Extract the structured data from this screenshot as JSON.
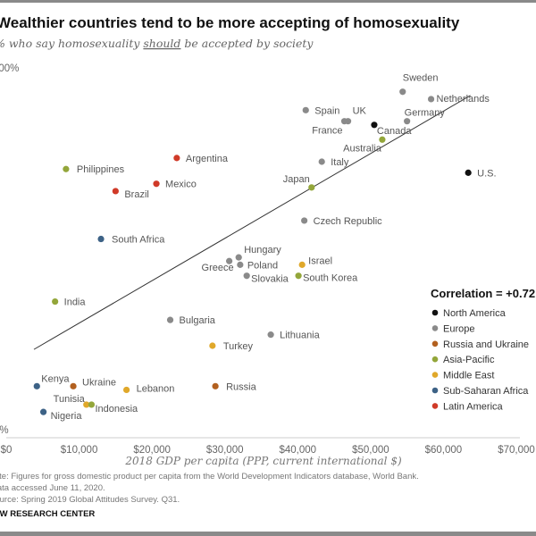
{
  "chart_data": {
    "type": "scatter",
    "title": "Wealthier countries tend to be more accepting of homosexuality",
    "subtitle_parts": [
      "% who say homosexuality ",
      "should",
      " be accepted by society"
    ],
    "xlabel": "2018 GDP per capita (PPP, current international $)",
    "ylabel": "",
    "xlim": [
      0,
      70000
    ],
    "ylim": [
      0,
      100
    ],
    "x_ticks": [
      "$0",
      "$10,000",
      "$20,000",
      "$30,000",
      "$40,000",
      "$50,000",
      "$60,000",
      "$70,000"
    ],
    "y_ticks": [
      "0%",
      "100%"
    ],
    "grid": false,
    "correlation_label": "Correlation = +0.72",
    "legend_position": "right",
    "regions": [
      {
        "name": "North America",
        "color": "#111111"
      },
      {
        "name": "Europe",
        "color": "#8a8a8a"
      },
      {
        "name": "Russia and Ukraine",
        "color": "#b2601f"
      },
      {
        "name": "Asia-Pacific",
        "color": "#93a63a"
      },
      {
        "name": "Middle East",
        "color": "#e0a82a"
      },
      {
        "name": "Sub-Saharan Africa",
        "color": "#3d6286"
      },
      {
        "name": "Latin America",
        "color": "#d03a28"
      }
    ],
    "trendline": {
      "x": [
        3800,
        63700
      ],
      "y": [
        24,
        93
      ]
    },
    "points": [
      {
        "country": "Sweden",
        "region": "Europe",
        "x": 54400,
        "y": 94
      },
      {
        "country": "Netherlands",
        "region": "Europe",
        "x": 58300,
        "y": 92
      },
      {
        "country": "Spain",
        "region": "Europe",
        "x": 41100,
        "y": 89
      },
      {
        "country": "UK",
        "region": "Europe",
        "x": 46900,
        "y": 86
      },
      {
        "country": "France",
        "region": "Europe",
        "x": 46400,
        "y": 86
      },
      {
        "country": "Canada",
        "region": "North America",
        "x": 50500,
        "y": 85
      },
      {
        "country": "Germany",
        "region": "Europe",
        "x": 55000,
        "y": 86
      },
      {
        "country": "Australia",
        "region": "Asia-Pacific",
        "x": 51600,
        "y": 81
      },
      {
        "country": "Italy",
        "region": "Europe",
        "x": 43300,
        "y": 75
      },
      {
        "country": "U.S.",
        "region": "North America",
        "x": 63400,
        "y": 72
      },
      {
        "country": "Japan",
        "region": "Asia-Pacific",
        "x": 41900,
        "y": 68
      },
      {
        "country": "Argentina",
        "region": "Latin America",
        "x": 23400,
        "y": 76
      },
      {
        "country": "Philippines",
        "region": "Asia-Pacific",
        "x": 8200,
        "y": 73
      },
      {
        "country": "Mexico",
        "region": "Latin America",
        "x": 20600,
        "y": 69
      },
      {
        "country": "Brazil",
        "region": "Latin America",
        "x": 15000,
        "y": 67
      },
      {
        "country": "South Africa",
        "region": "Sub-Saharan Africa",
        "x": 13000,
        "y": 54
      },
      {
        "country": "Czech Republic",
        "region": "Europe",
        "x": 40900,
        "y": 59
      },
      {
        "country": "Hungary",
        "region": "Europe",
        "x": 31900,
        "y": 49
      },
      {
        "country": "Greece",
        "region": "Europe",
        "x": 30600,
        "y": 48
      },
      {
        "country": "Poland",
        "region": "Europe",
        "x": 32100,
        "y": 47
      },
      {
        "country": "Slovakia",
        "region": "Europe",
        "x": 33000,
        "y": 44
      },
      {
        "country": "Israel",
        "region": "Middle East",
        "x": 40600,
        "y": 47
      },
      {
        "country": "South Korea",
        "region": "Asia-Pacific",
        "x": 40100,
        "y": 44
      },
      {
        "country": "India",
        "region": "Asia-Pacific",
        "x": 6700,
        "y": 37
      },
      {
        "country": "Bulgaria",
        "region": "Europe",
        "x": 22500,
        "y": 32
      },
      {
        "country": "Lithuania",
        "region": "Europe",
        "x": 36300,
        "y": 28
      },
      {
        "country": "Turkey",
        "region": "Middle East",
        "x": 28300,
        "y": 25
      },
      {
        "country": "Kenya",
        "region": "Sub-Saharan Africa",
        "x": 4200,
        "y": 14
      },
      {
        "country": "Ukraine",
        "region": "Russia and Ukraine",
        "x": 9200,
        "y": 14
      },
      {
        "country": "Lebanon",
        "region": "Middle East",
        "x": 16500,
        "y": 13
      },
      {
        "country": "Russia",
        "region": "Russia and Ukraine",
        "x": 28700,
        "y": 14
      },
      {
        "country": "Tunisia",
        "region": "Middle East",
        "x": 11000,
        "y": 9
      },
      {
        "country": "Indonesia",
        "region": "Asia-Pacific",
        "x": 11700,
        "y": 9
      },
      {
        "country": "Nigeria",
        "region": "Sub-Saharan Africa",
        "x": 5100,
        "y": 7
      }
    ]
  },
  "notes": [
    "Note: Figures for gross domestic product per capita from the World Development Indicators database, World Bank.",
    "Data accessed June 11, 2020.",
    "Source: Spring 2019 Global Attitudes Survey. Q31."
  ],
  "footer": "PEW RESEARCH CENTER"
}
